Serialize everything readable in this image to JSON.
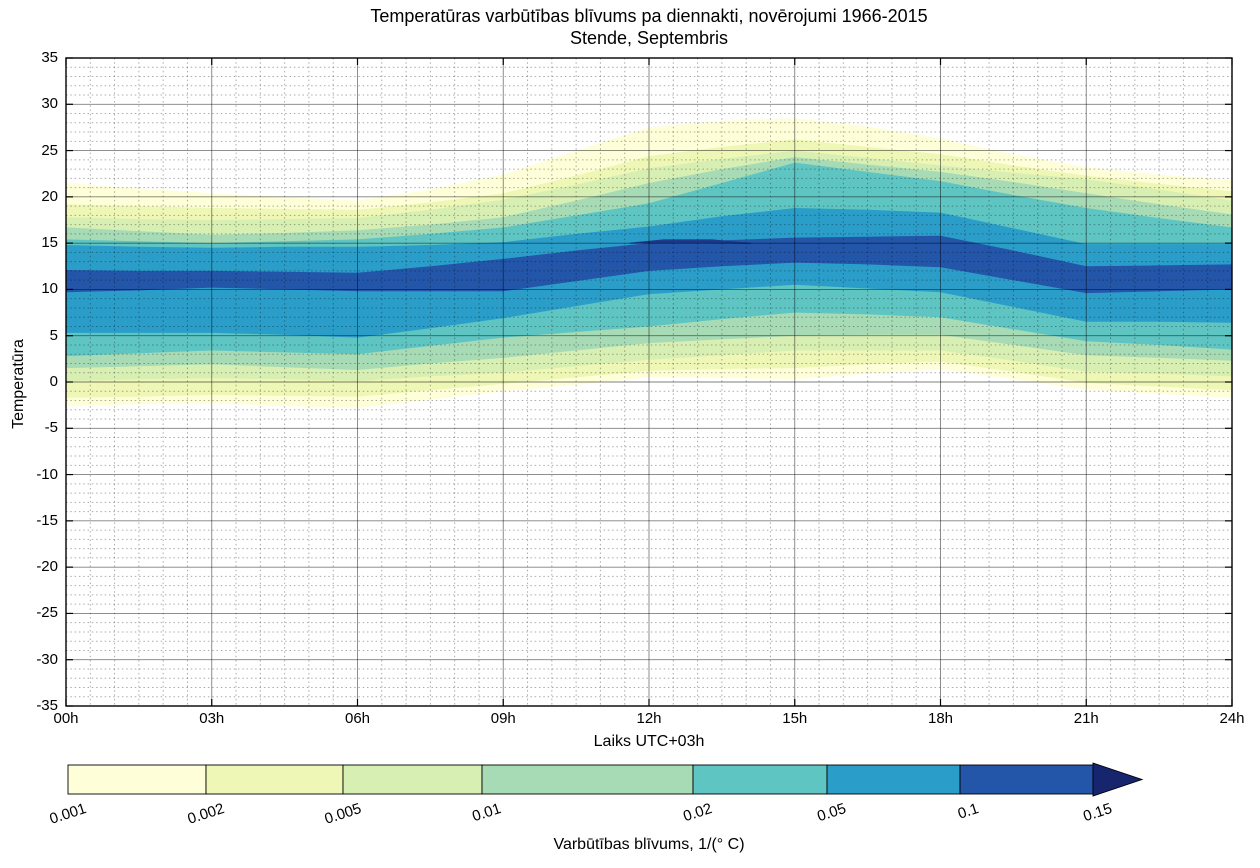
{
  "figure": {
    "background": "#ffffff",
    "title_line1": "Temperatūras varbūtības blīvums pa diennakti, novērojumi 1966-2015",
    "title_line2": "Stende, Septembris",
    "xlabel": "Laiks UTC+03h",
    "ylabel": "Temperatūra",
    "colorbar_label": "Varbūtības blīvums, 1/(° C)"
  },
  "chart_data": {
    "type": "filled_contour",
    "title": "Temperatūras varbūtības blīvums pa diennakti, novērojumi 1966-2015",
    "subtitle": "Stende, Septembris",
    "xlabel": "Laiks UTC+03h",
    "ylabel": "Temperatūra",
    "x_range_hours": [
      0,
      24
    ],
    "y_range_degC": [
      -35,
      35
    ],
    "grid": "on",
    "x_tick_labels": [
      "00h",
      "03h",
      "06h",
      "09h",
      "12h",
      "15h",
      "18h",
      "21h",
      "24h"
    ],
    "x_tick_hours": [
      0,
      3,
      6,
      9,
      12,
      15,
      18,
      21,
      24
    ],
    "y_tick_labels": [
      "35",
      "30",
      "25",
      "20",
      "15",
      "10",
      "5",
      "0",
      "-5",
      "-10",
      "-15",
      "-20",
      "-25",
      "-30",
      "-35"
    ],
    "y_tick_values": [
      35,
      30,
      25,
      20,
      15,
      10,
      5,
      0,
      -5,
      -10,
      -15,
      -20,
      -25,
      -30,
      -35
    ],
    "times": [
      0,
      1.5,
      3,
      4.5,
      6,
      7.5,
      9,
      10.5,
      12,
      13.5,
      15,
      16.5,
      18,
      19.5,
      21,
      22.5,
      24
    ],
    "levels": [
      0.001,
      0.002,
      0.005,
      0.01,
      0.02,
      0.05,
      0.1
    ],
    "level_colors": [
      "#feffd8",
      "#eef7b5",
      "#d8efb4",
      "#a7dbb6",
      "#5ec5c2",
      "#2b9dc9",
      "#2355a9"
    ],
    "bands": [
      {
        "level": 0.001,
        "color": "#feffd8",
        "upper": [
          21.5,
          20.9,
          20.4,
          20.0,
          19.6,
          20.8,
          22.4,
          25.0,
          27.5,
          28.2,
          28.5,
          27.6,
          26.3,
          24.6,
          23.2,
          22.4,
          21.8
        ],
        "lower": [
          -2.6,
          -2.4,
          -2.3,
          -2.6,
          -2.8,
          -1.9,
          -1.0,
          -0.3,
          0.5,
          0.4,
          0.3,
          0.9,
          1.4,
          0.3,
          -0.8,
          -1.3,
          -1.7
        ]
      },
      {
        "level": 0.002,
        "color": "#eef7b5",
        "upper": [
          19.2,
          19.0,
          18.8,
          18.7,
          18.6,
          19.4,
          20.4,
          22.3,
          24.4,
          25.4,
          26.2,
          25.4,
          24.6,
          23.4,
          22.3,
          21.4,
          20.6
        ],
        "lower": [
          -1.7,
          -1.6,
          -1.4,
          -1.5,
          -1.6,
          -0.9,
          -0.2,
          0.5,
          1.2,
          1.4,
          1.5,
          1.9,
          2.2,
          1.1,
          -0.1,
          -0.5,
          -0.9
        ]
      },
      {
        "level": 0.005,
        "color": "#d8efb4",
        "upper": [
          17.8,
          17.6,
          17.5,
          17.6,
          17.7,
          18.6,
          19.7,
          21.3,
          23.1,
          24.1,
          25.0,
          24.2,
          23.4,
          22.6,
          21.9,
          20.8,
          19.6
        ],
        "lower": [
          0.1,
          0.3,
          0.4,
          0.3,
          0.1,
          0.6,
          1.0,
          1.7,
          2.4,
          2.9,
          3.4,
          3.4,
          3.4,
          2.3,
          1.1,
          0.9,
          0.6
        ]
      },
      {
        "level": 0.01,
        "color": "#a7dbb6",
        "upper": [
          16.7,
          16.3,
          15.9,
          16.1,
          16.4,
          17.0,
          17.8,
          19.6,
          21.5,
          23.0,
          24.3,
          23.5,
          22.7,
          21.6,
          20.4,
          19.2,
          18.1
        ],
        "lower": [
          1.5,
          1.7,
          1.9,
          1.6,
          1.3,
          2.0,
          2.6,
          3.4,
          4.2,
          4.6,
          5.0,
          5.1,
          5.1,
          4.0,
          2.9,
          2.6,
          2.3
        ]
      },
      {
        "level": 0.02,
        "color": "#5ec5c2",
        "upper": [
          15.4,
          15.2,
          15.0,
          15.2,
          15.4,
          16.0,
          16.7,
          18.0,
          19.3,
          21.5,
          23.7,
          22.7,
          21.7,
          20.2,
          18.8,
          17.7,
          16.7
        ],
        "lower": [
          2.8,
          3.1,
          3.4,
          3.2,
          3.0,
          3.9,
          4.8,
          5.4,
          6.0,
          6.8,
          7.5,
          7.3,
          7.0,
          5.7,
          4.4,
          4.0,
          3.5
        ]
      },
      {
        "level": 0.05,
        "color": "#2b9dc9",
        "upper": [
          14.8,
          14.6,
          14.5,
          14.6,
          14.6,
          14.8,
          15.1,
          16.0,
          16.8,
          17.9,
          18.8,
          18.6,
          18.3,
          16.6,
          14.9,
          14.9,
          14.9
        ],
        "lower": [
          5.3,
          5.3,
          5.3,
          5.1,
          4.8,
          5.8,
          6.9,
          8.2,
          9.5,
          10.0,
          10.5,
          10.1,
          9.7,
          8.1,
          6.5,
          6.5,
          6.4
        ]
      },
      {
        "level": 0.1,
        "color": "#2355a9",
        "upper": [
          12.1,
          12.0,
          12.0,
          11.9,
          11.8,
          12.5,
          13.3,
          14.2,
          15.0,
          15.3,
          15.6,
          15.7,
          15.8,
          14.2,
          12.5,
          12.6,
          12.7
        ],
        "lower": [
          9.7,
          9.9,
          10.2,
          10.0,
          9.8,
          9.8,
          9.8,
          10.9,
          12.0,
          12.5,
          12.9,
          12.7,
          12.4,
          11.0,
          9.6,
          9.8,
          10.0
        ]
      }
    ],
    "inner_patch": {
      "level": 0.15,
      "color": "#1b3a8c",
      "times": [
        11.6,
        12.3,
        13.3,
        14.1
      ],
      "upper": [
        15.05,
        15.4,
        15.4,
        15.05
      ],
      "lower": [
        14.95,
        15.0,
        15.0,
        14.9
      ]
    },
    "colorbar": {
      "tick_labels": [
        "0.001",
        "0.002",
        "0.005",
        "0.01",
        "0.02",
        "0.05",
        "0.1",
        "0.15"
      ],
      "segment_colors": [
        "#feffd8",
        "#eef7b5",
        "#d8efb4",
        "#a7dbb6",
        "#5ec5c2",
        "#2b9dc9",
        "#2355a9"
      ],
      "arrow_color": "#16256e",
      "legend_position": "bottom"
    }
  }
}
